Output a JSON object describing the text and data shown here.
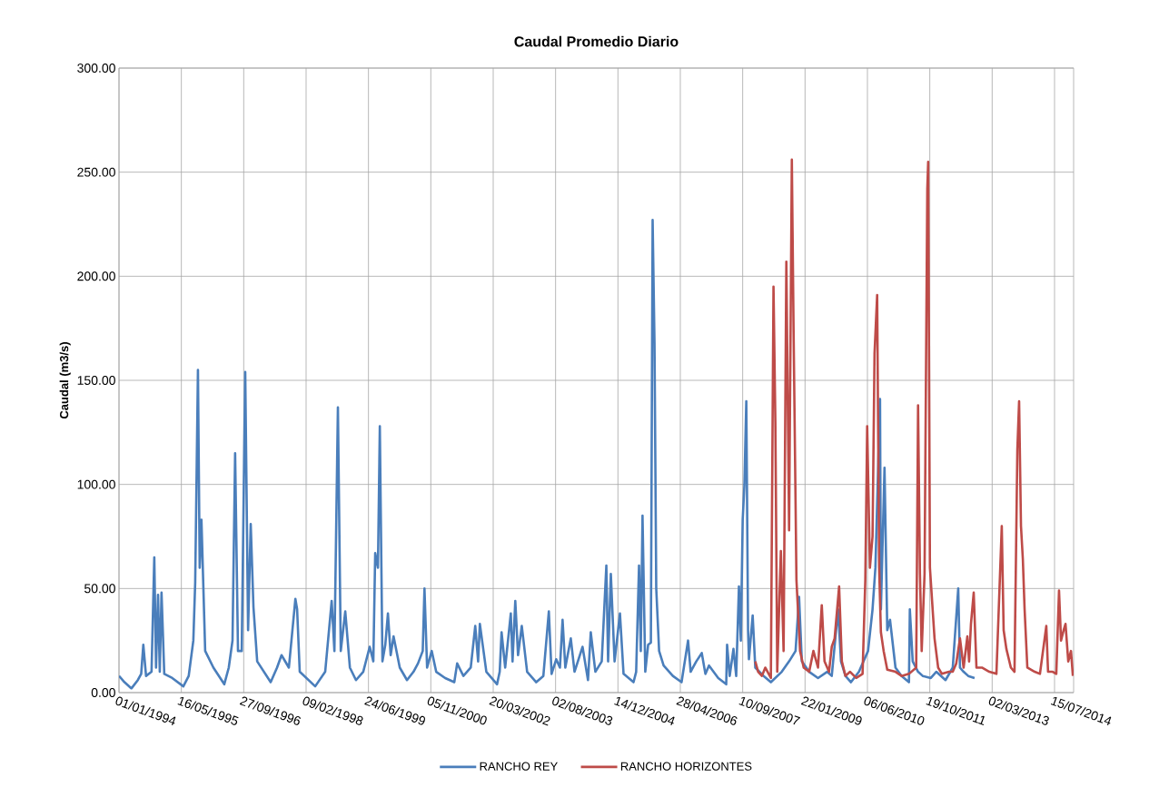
{
  "chart_data": {
    "type": "line",
    "title": "Caudal Promedio Diario",
    "ylabel": "Caudal (m3/s)",
    "xlim": [
      "1994-01-01",
      "2014-12-15"
    ],
    "xticks": [
      {
        "value": "1994-01-01",
        "label": "01/01/1994"
      },
      {
        "value": "1995-05-16",
        "label": "16/05/1995"
      },
      {
        "value": "1996-09-27",
        "label": "27/09/1996"
      },
      {
        "value": "1998-02-09",
        "label": "09/02/1998"
      },
      {
        "value": "1999-06-24",
        "label": "24/06/1999"
      },
      {
        "value": "2000-11-05",
        "label": "05/11/2000"
      },
      {
        "value": "2002-03-20",
        "label": "20/03/2002"
      },
      {
        "value": "2003-08-02",
        "label": "02/08/2003"
      },
      {
        "value": "2004-12-14",
        "label": "14/12/2004"
      },
      {
        "value": "2006-04-28",
        "label": "28/04/2006"
      },
      {
        "value": "2007-09-10",
        "label": "10/09/2007"
      },
      {
        "value": "2009-01-22",
        "label": "22/01/2009"
      },
      {
        "value": "2010-06-06",
        "label": "06/06/2010"
      },
      {
        "value": "2011-10-19",
        "label": "19/10/2011"
      },
      {
        "value": "2013-03-02",
        "label": "02/03/2013"
      },
      {
        "value": "2014-07-15",
        "label": "15/07/2014"
      }
    ],
    "ylim": [
      0,
      300
    ],
    "yticks": [
      {
        "value": 0,
        "label": "0.00"
      },
      {
        "value": 50,
        "label": "50.00"
      },
      {
        "value": 100,
        "label": "100.00"
      },
      {
        "value": 150,
        "label": "150.00"
      },
      {
        "value": 200,
        "label": "200.00"
      },
      {
        "value": 250,
        "label": "250.00"
      },
      {
        "value": 300,
        "label": "300.00"
      }
    ],
    "grid": true,
    "legend": "bottom",
    "series": [
      {
        "name": "RANCHO REY",
        "color": "#4a7ebb",
        "x": [
          "1994-01-01",
          "1994-02-14",
          "1994-04-11",
          "1994-06-01",
          "1994-06-28",
          "1994-07-15",
          "1994-08-06",
          "1994-09-19",
          "1994-10-11",
          "1994-10-25",
          "1994-11-10",
          "1994-11-24",
          "1994-12-08",
          "1994-12-30",
          "1995-03-04",
          "1995-06-01",
          "1995-07-14",
          "1995-08-20",
          "1995-09-04",
          "1995-09-26",
          "1995-10-10",
          "1995-10-24",
          "1995-11-23",
          "1996-01-28",
          "1996-04-24",
          "1996-05-30",
          "1996-06-29",
          "1996-07-20",
          "1996-08-12",
          "1996-09-11",
          "1996-10-09",
          "1996-11-01",
          "1996-11-22",
          "1996-12-14",
          "1997-01-13",
          "1997-05-01",
          "1997-06-21",
          "1997-07-27",
          "1997-09-24",
          "1997-11-15",
          "1997-11-29",
          "1997-12-20",
          "1998-04-23",
          "1998-07-12",
          "1998-09-02",
          "1998-09-24",
          "1998-10-22",
          "1998-11-14",
          "1998-12-20",
          "1999-01-26",
          "1999-03-16",
          "1999-05-13",
          "1999-07-04",
          "1999-08-02",
          "1999-08-17",
          "1999-09-08",
          "1999-09-23",
          "1999-10-14",
          "1999-11-06",
          "1999-11-27",
          "1999-12-19",
          "2000-01-11",
          "2000-03-01",
          "2000-04-28",
          "2000-06-19",
          "2000-07-25",
          "2000-09-01",
          "2000-09-15",
          "2000-10-06",
          "2000-11-12",
          "2000-12-18",
          "2001-02-28",
          "2001-05-12",
          "2001-06-04",
          "2001-07-24",
          "2001-09-21",
          "2001-10-27",
          "2001-11-19",
          "2001-12-03",
          "2002-01-24",
          "2002-04-20",
          "2002-05-11",
          "2002-05-26",
          "2002-06-24",
          "2002-08-08",
          "2002-08-22",
          "2002-09-13",
          "2002-10-05",
          "2002-11-04",
          "2002-12-17",
          "2003-02-28",
          "2003-04-26",
          "2003-06-09",
          "2003-07-01",
          "2003-08-07",
          "2003-09-06",
          "2003-09-27",
          "2003-10-19",
          "2003-12-02",
          "2004-01-01",
          "2004-03-05",
          "2004-04-18",
          "2004-05-10",
          "2004-06-16",
          "2004-08-06",
          "2004-09-12",
          "2004-09-26",
          "2004-10-18",
          "2004-11-17",
          "2004-12-30",
          "2005-01-28",
          "2005-04-18",
          "2005-05-09",
          "2005-06-01",
          "2005-06-15",
          "2005-06-29",
          "2005-07-21",
          "2005-08-13",
          "2005-09-04",
          "2005-09-18",
          "2005-10-03",
          "2005-10-17",
          "2005-11-09",
          "2005-12-15",
          "2006-02-27",
          "2006-05-08",
          "2006-06-29",
          "2006-07-20",
          "2006-09-03",
          "2006-10-17",
          "2006-11-15",
          "2006-12-14",
          "2007-02-26",
          "2007-05-01",
          "2007-05-08",
          "2007-05-29",
          "2007-06-28",
          "2007-07-20",
          "2007-08-11",
          "2007-08-26",
          "2007-09-10",
          "2007-09-24",
          "2007-10-09",
          "2007-10-23",
          "2007-10-30",
          "2007-11-29",
          "2007-12-20",
          "2008-02-25",
          "2008-04-23",
          "2008-07-19",
          "2008-09-16",
          "2008-11-07",
          "2008-12-05",
          "2008-12-27",
          "2009-02-24",
          "2009-05-06",
          "2009-07-18",
          "2009-08-24",
          "2009-10-14",
          "2009-11-06",
          "2009-12-12",
          "2010-01-25",
          "2010-03-30",
          "2010-06-11",
          "2010-07-17",
          "2010-08-09",
          "2010-09-15",
          "2010-09-22",
          "2010-10-21",
          "2010-11-12",
          "2010-12-04",
          "2011-01-17",
          "2011-03-07",
          "2011-05-05",
          "2011-05-12",
          "2011-06-04",
          "2011-07-17",
          "2011-08-23",
          "2011-10-27",
          "2011-12-10",
          "2012-02-22",
          "2012-04-20",
          "2012-06-03",
          "2012-06-17",
          "2012-07-16",
          "2012-08-22",
          "2012-10-12"
        ],
        "values": [
          8,
          5,
          2,
          6,
          9,
          23,
          8,
          10,
          65,
          12,
          47,
          10,
          48,
          9,
          7,
          3,
          8,
          25,
          53,
          155,
          60,
          83,
          20,
          12,
          4,
          12,
          25,
          115,
          20,
          20,
          154,
          30,
          81,
          41,
          15,
          5,
          12,
          18,
          12,
          45,
          40,
          10,
          3,
          10,
          44,
          20,
          137,
          20,
          39,
          12,
          6,
          10,
          22,
          15,
          67,
          60,
          128,
          15,
          23,
          38,
          18,
          27,
          12,
          6,
          10,
          14,
          20,
          50,
          12,
          20,
          10,
          7,
          5,
          14,
          8,
          12,
          32,
          15,
          33,
          10,
          4,
          10,
          29,
          12,
          38,
          15,
          44,
          18,
          32,
          10,
          5,
          8,
          39,
          9,
          16,
          12,
          35,
          12,
          26,
          10,
          22,
          6,
          29,
          10,
          15,
          61,
          15,
          57,
          15,
          38,
          9,
          5,
          10,
          61,
          20,
          85,
          10,
          23,
          24,
          227,
          168,
          50,
          20,
          13,
          8,
          5,
          25,
          10,
          15,
          19,
          9,
          13,
          7,
          4,
          23,
          8,
          21,
          8,
          51,
          25,
          83,
          100,
          140,
          30,
          16,
          37,
          12,
          8,
          5,
          10,
          15,
          20,
          46,
          15,
          10,
          7,
          10,
          8,
          40,
          15,
          8,
          5,
          10,
          20,
          40,
          60,
          141,
          40,
          108,
          30,
          35,
          12,
          8,
          5,
          40,
          15,
          10,
          8,
          7,
          10,
          6,
          12,
          50,
          12,
          10,
          8,
          7
        ]
      },
      {
        "name": "RANCHO HORIZONTES",
        "color": "#be4b48",
        "x": [
          "2007-12-20",
          "2008-01-12",
          "2008-02-11",
          "2008-03-09",
          "2008-04-23",
          "2008-05-14",
          "2008-05-29",
          "2008-06-13",
          "2008-07-12",
          "2008-08-03",
          "2008-08-25",
          "2008-09-16",
          "2008-10-08",
          "2008-10-22",
          "2008-11-14",
          "2008-12-13",
          "2009-01-11",
          "2009-02-24",
          "2009-03-30",
          "2009-05-06",
          "2009-06-05",
          "2009-06-27",
          "2009-08-02",
          "2009-08-24",
          "2009-09-16",
          "2009-10-22",
          "2009-11-13",
          "2009-12-12",
          "2010-01-18",
          "2010-03-08",
          "2010-04-28",
          "2010-05-20",
          "2010-06-04",
          "2010-06-26",
          "2010-07-17",
          "2010-08-02",
          "2010-08-23",
          "2010-09-08",
          "2010-09-22",
          "2010-10-14",
          "2010-11-12",
          "2011-01-17",
          "2011-03-07",
          "2011-05-05",
          "2011-07-02",
          "2011-07-17",
          "2011-08-01",
          "2011-08-15",
          "2011-09-07",
          "2011-09-29",
          "2011-10-06",
          "2011-10-20",
          "2011-11-26",
          "2011-12-25",
          "2012-01-24",
          "2012-03-21",
          "2012-04-20",
          "2012-05-18",
          "2012-06-17",
          "2012-07-16",
          "2012-08-15",
          "2012-08-29",
          "2012-09-13",
          "2012-10-05",
          "2012-10-27",
          "2012-12-10",
          "2013-02-07",
          "2013-04-05",
          "2013-05-18",
          "2013-06-02",
          "2013-06-24",
          "2013-07-30",
          "2013-08-28",
          "2013-09-20",
          "2013-10-04",
          "2013-10-19",
          "2013-11-03",
          "2013-11-17",
          "2013-12-09",
          "2014-02-06",
          "2014-03-20",
          "2014-05-10",
          "2014-05-24",
          "2014-06-30",
          "2014-07-29",
          "2014-08-20",
          "2014-09-05",
          "2014-09-26",
          "2014-10-11",
          "2014-11-02",
          "2014-11-24",
          "2014-12-09"
        ],
        "values": [
          15,
          10,
          8,
          12,
          7,
          195,
          130,
          10,
          68,
          20,
          207,
          78,
          256,
          174,
          54,
          20,
          12,
          10,
          20,
          12,
          42,
          15,
          10,
          22,
          26,
          51,
          15,
          8,
          10,
          7,
          9,
          54,
          128,
          60,
          75,
          163,
          191,
          60,
          29,
          20,
          11,
          10,
          8,
          9,
          12,
          138,
          57,
          20,
          57,
          242,
          255,
          60,
          26,
          12,
          9,
          10,
          10,
          14,
          26,
          12,
          27,
          15,
          33,
          48,
          12,
          12,
          10,
          9,
          80,
          30,
          21,
          12,
          10,
          117,
          140,
          80,
          64,
          40,
          12,
          10,
          9,
          32,
          10,
          10,
          9,
          49,
          25,
          30,
          33,
          15,
          20,
          8
        ]
      }
    ]
  }
}
